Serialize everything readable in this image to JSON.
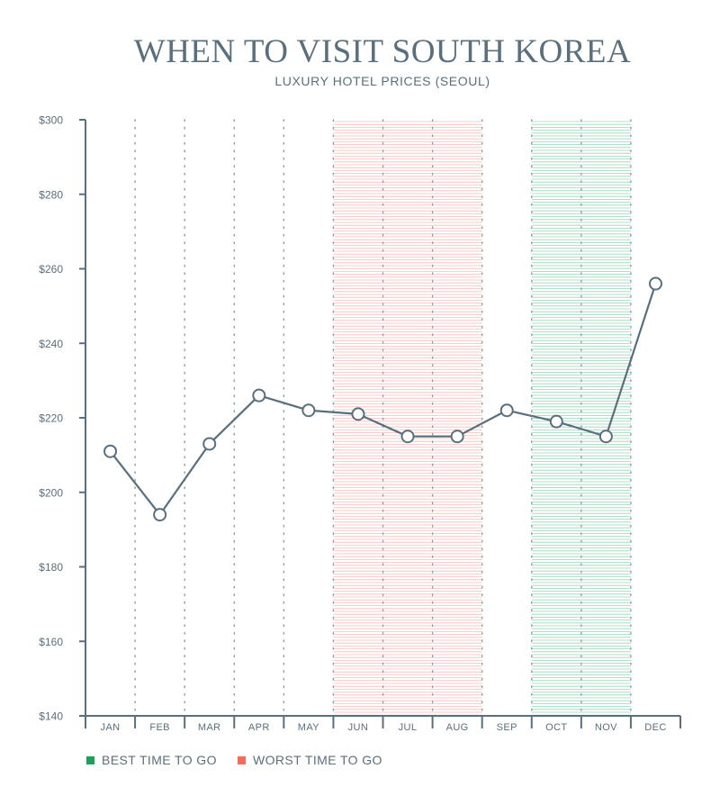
{
  "chart_data": {
    "type": "line",
    "title": "WHEN TO VISIT SOUTH KOREA",
    "subtitle": "LUXURY HOTEL PRICES (SEOUL)",
    "categories": [
      "JAN",
      "FEB",
      "MAR",
      "APR",
      "MAY",
      "JUN",
      "JUL",
      "AUG",
      "SEP",
      "OCT",
      "NOV",
      "DEC"
    ],
    "values": [
      211,
      194,
      213,
      226,
      222,
      221,
      215,
      215,
      222,
      219,
      215,
      256
    ],
    "ylim": [
      140,
      300
    ],
    "yticks": [
      140,
      160,
      180,
      200,
      220,
      240,
      260,
      280,
      300
    ],
    "ytick_labels": [
      "$140",
      "$160",
      "$180",
      "$200",
      "$220",
      "$240",
      "$260",
      "$280",
      "$300"
    ],
    "grid": "vertical dotted",
    "highlight_ranges": [
      {
        "label": "WORST TIME TO GO",
        "start": "JUN",
        "end": "AUG",
        "color": "#f26b5b"
      },
      {
        "label": "BEST TIME TO GO",
        "start": "OCT",
        "end": "NOV",
        "color": "#1ea05a"
      }
    ],
    "legend": [
      {
        "label": "BEST TIME TO GO",
        "color": "#1ea05a"
      },
      {
        "label": "WORST TIME TO GO",
        "color": "#f26b5b"
      }
    ],
    "legend_position": "bottom-left",
    "line_color": "#5a6f7d"
  }
}
